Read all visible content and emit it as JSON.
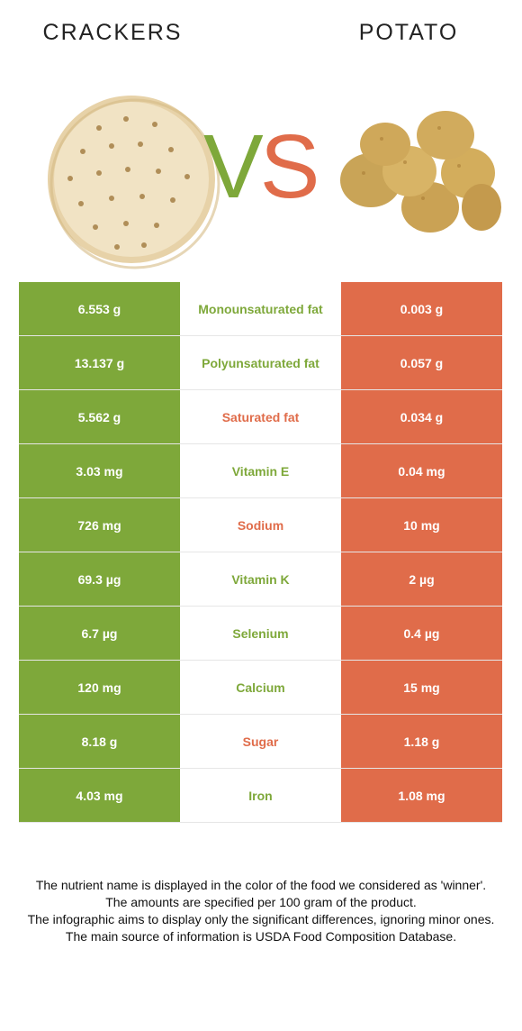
{
  "header": {
    "left_food": "CRACKERS",
    "right_food": "POTATO",
    "vs_v": "V",
    "vs_s": "S"
  },
  "colors": {
    "left_winner": "#7ea83a",
    "right_winner": "#e06c4a"
  },
  "rows": [
    {
      "left": "6.553 g",
      "name": "Monounsaturated fat",
      "right": "0.003 g",
      "winner": "left"
    },
    {
      "left": "13.137 g",
      "name": "Polyunsaturated fat",
      "right": "0.057 g",
      "winner": "left"
    },
    {
      "left": "5.562 g",
      "name": "Saturated fat",
      "right": "0.034 g",
      "winner": "right"
    },
    {
      "left": "3.03 mg",
      "name": "Vitamin E",
      "right": "0.04 mg",
      "winner": "left"
    },
    {
      "left": "726 mg",
      "name": "Sodium",
      "right": "10 mg",
      "winner": "right"
    },
    {
      "left": "69.3 µg",
      "name": "Vitamin K",
      "right": "2 µg",
      "winner": "left"
    },
    {
      "left": "6.7 µg",
      "name": "Selenium",
      "right": "0.4 µg",
      "winner": "left"
    },
    {
      "left": "120 mg",
      "name": "Calcium",
      "right": "15 mg",
      "winner": "left"
    },
    {
      "left": "8.18 g",
      "name": "Sugar",
      "right": "1.18 g",
      "winner": "right"
    },
    {
      "left": "4.03 mg",
      "name": "Iron",
      "right": "1.08 mg",
      "winner": "left"
    }
  ],
  "footer": {
    "line1": "The nutrient name is displayed in the color of the food we considered as 'winner'.",
    "line2": "The amounts are specified per 100 gram of the product.",
    "line3": "The infographic aims to display only the significant differences, ignoring minor ones.",
    "line4": "The main source of information is USDA Food Composition Database."
  }
}
